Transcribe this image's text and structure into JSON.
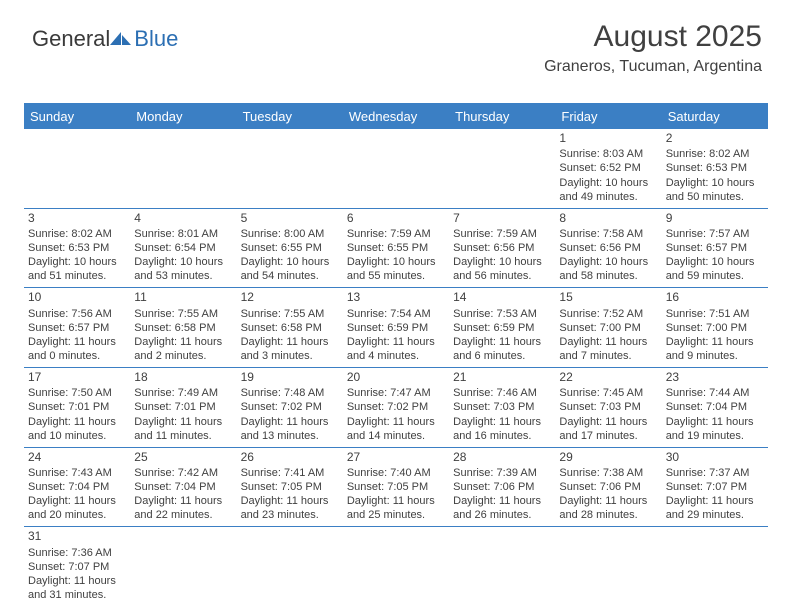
{
  "logo": {
    "part1": "General",
    "part2": "Blue"
  },
  "title": "August 2025",
  "location": "Graneros, Tucuman, Argentina",
  "colors": {
    "header_bg": "#3b7fc4",
    "header_text": "#ffffff",
    "border": "#3b7fc4",
    "text": "#404040",
    "logo_blue": "#2c6fb3"
  },
  "dayNames": [
    "Sunday",
    "Monday",
    "Tuesday",
    "Wednesday",
    "Thursday",
    "Friday",
    "Saturday"
  ],
  "weeks": [
    [
      null,
      null,
      null,
      null,
      null,
      {
        "d": "1",
        "sr": "Sunrise: 8:03 AM",
        "ss": "Sunset: 6:52 PM",
        "dl1": "Daylight: 10 hours",
        "dl2": "and 49 minutes."
      },
      {
        "d": "2",
        "sr": "Sunrise: 8:02 AM",
        "ss": "Sunset: 6:53 PM",
        "dl1": "Daylight: 10 hours",
        "dl2": "and 50 minutes."
      }
    ],
    [
      {
        "d": "3",
        "sr": "Sunrise: 8:02 AM",
        "ss": "Sunset: 6:53 PM",
        "dl1": "Daylight: 10 hours",
        "dl2": "and 51 minutes."
      },
      {
        "d": "4",
        "sr": "Sunrise: 8:01 AM",
        "ss": "Sunset: 6:54 PM",
        "dl1": "Daylight: 10 hours",
        "dl2": "and 53 minutes."
      },
      {
        "d": "5",
        "sr": "Sunrise: 8:00 AM",
        "ss": "Sunset: 6:55 PM",
        "dl1": "Daylight: 10 hours",
        "dl2": "and 54 minutes."
      },
      {
        "d": "6",
        "sr": "Sunrise: 7:59 AM",
        "ss": "Sunset: 6:55 PM",
        "dl1": "Daylight: 10 hours",
        "dl2": "and 55 minutes."
      },
      {
        "d": "7",
        "sr": "Sunrise: 7:59 AM",
        "ss": "Sunset: 6:56 PM",
        "dl1": "Daylight: 10 hours",
        "dl2": "and 56 minutes."
      },
      {
        "d": "8",
        "sr": "Sunrise: 7:58 AM",
        "ss": "Sunset: 6:56 PM",
        "dl1": "Daylight: 10 hours",
        "dl2": "and 58 minutes."
      },
      {
        "d": "9",
        "sr": "Sunrise: 7:57 AM",
        "ss": "Sunset: 6:57 PM",
        "dl1": "Daylight: 10 hours",
        "dl2": "and 59 minutes."
      }
    ],
    [
      {
        "d": "10",
        "sr": "Sunrise: 7:56 AM",
        "ss": "Sunset: 6:57 PM",
        "dl1": "Daylight: 11 hours",
        "dl2": "and 0 minutes."
      },
      {
        "d": "11",
        "sr": "Sunrise: 7:55 AM",
        "ss": "Sunset: 6:58 PM",
        "dl1": "Daylight: 11 hours",
        "dl2": "and 2 minutes."
      },
      {
        "d": "12",
        "sr": "Sunrise: 7:55 AM",
        "ss": "Sunset: 6:58 PM",
        "dl1": "Daylight: 11 hours",
        "dl2": "and 3 minutes."
      },
      {
        "d": "13",
        "sr": "Sunrise: 7:54 AM",
        "ss": "Sunset: 6:59 PM",
        "dl1": "Daylight: 11 hours",
        "dl2": "and 4 minutes."
      },
      {
        "d": "14",
        "sr": "Sunrise: 7:53 AM",
        "ss": "Sunset: 6:59 PM",
        "dl1": "Daylight: 11 hours",
        "dl2": "and 6 minutes."
      },
      {
        "d": "15",
        "sr": "Sunrise: 7:52 AM",
        "ss": "Sunset: 7:00 PM",
        "dl1": "Daylight: 11 hours",
        "dl2": "and 7 minutes."
      },
      {
        "d": "16",
        "sr": "Sunrise: 7:51 AM",
        "ss": "Sunset: 7:00 PM",
        "dl1": "Daylight: 11 hours",
        "dl2": "and 9 minutes."
      }
    ],
    [
      {
        "d": "17",
        "sr": "Sunrise: 7:50 AM",
        "ss": "Sunset: 7:01 PM",
        "dl1": "Daylight: 11 hours",
        "dl2": "and 10 minutes."
      },
      {
        "d": "18",
        "sr": "Sunrise: 7:49 AM",
        "ss": "Sunset: 7:01 PM",
        "dl1": "Daylight: 11 hours",
        "dl2": "and 11 minutes."
      },
      {
        "d": "19",
        "sr": "Sunrise: 7:48 AM",
        "ss": "Sunset: 7:02 PM",
        "dl1": "Daylight: 11 hours",
        "dl2": "and 13 minutes."
      },
      {
        "d": "20",
        "sr": "Sunrise: 7:47 AM",
        "ss": "Sunset: 7:02 PM",
        "dl1": "Daylight: 11 hours",
        "dl2": "and 14 minutes."
      },
      {
        "d": "21",
        "sr": "Sunrise: 7:46 AM",
        "ss": "Sunset: 7:03 PM",
        "dl1": "Daylight: 11 hours",
        "dl2": "and 16 minutes."
      },
      {
        "d": "22",
        "sr": "Sunrise: 7:45 AM",
        "ss": "Sunset: 7:03 PM",
        "dl1": "Daylight: 11 hours",
        "dl2": "and 17 minutes."
      },
      {
        "d": "23",
        "sr": "Sunrise: 7:44 AM",
        "ss": "Sunset: 7:04 PM",
        "dl1": "Daylight: 11 hours",
        "dl2": "and 19 minutes."
      }
    ],
    [
      {
        "d": "24",
        "sr": "Sunrise: 7:43 AM",
        "ss": "Sunset: 7:04 PM",
        "dl1": "Daylight: 11 hours",
        "dl2": "and 20 minutes."
      },
      {
        "d": "25",
        "sr": "Sunrise: 7:42 AM",
        "ss": "Sunset: 7:04 PM",
        "dl1": "Daylight: 11 hours",
        "dl2": "and 22 minutes."
      },
      {
        "d": "26",
        "sr": "Sunrise: 7:41 AM",
        "ss": "Sunset: 7:05 PM",
        "dl1": "Daylight: 11 hours",
        "dl2": "and 23 minutes."
      },
      {
        "d": "27",
        "sr": "Sunrise: 7:40 AM",
        "ss": "Sunset: 7:05 PM",
        "dl1": "Daylight: 11 hours",
        "dl2": "and 25 minutes."
      },
      {
        "d": "28",
        "sr": "Sunrise: 7:39 AM",
        "ss": "Sunset: 7:06 PM",
        "dl1": "Daylight: 11 hours",
        "dl2": "and 26 minutes."
      },
      {
        "d": "29",
        "sr": "Sunrise: 7:38 AM",
        "ss": "Sunset: 7:06 PM",
        "dl1": "Daylight: 11 hours",
        "dl2": "and 28 minutes."
      },
      {
        "d": "30",
        "sr": "Sunrise: 7:37 AM",
        "ss": "Sunset: 7:07 PM",
        "dl1": "Daylight: 11 hours",
        "dl2": "and 29 minutes."
      }
    ],
    [
      {
        "d": "31",
        "sr": "Sunrise: 7:36 AM",
        "ss": "Sunset: 7:07 PM",
        "dl1": "Daylight: 11 hours",
        "dl2": "and 31 minutes."
      },
      null,
      null,
      null,
      null,
      null,
      null
    ]
  ]
}
